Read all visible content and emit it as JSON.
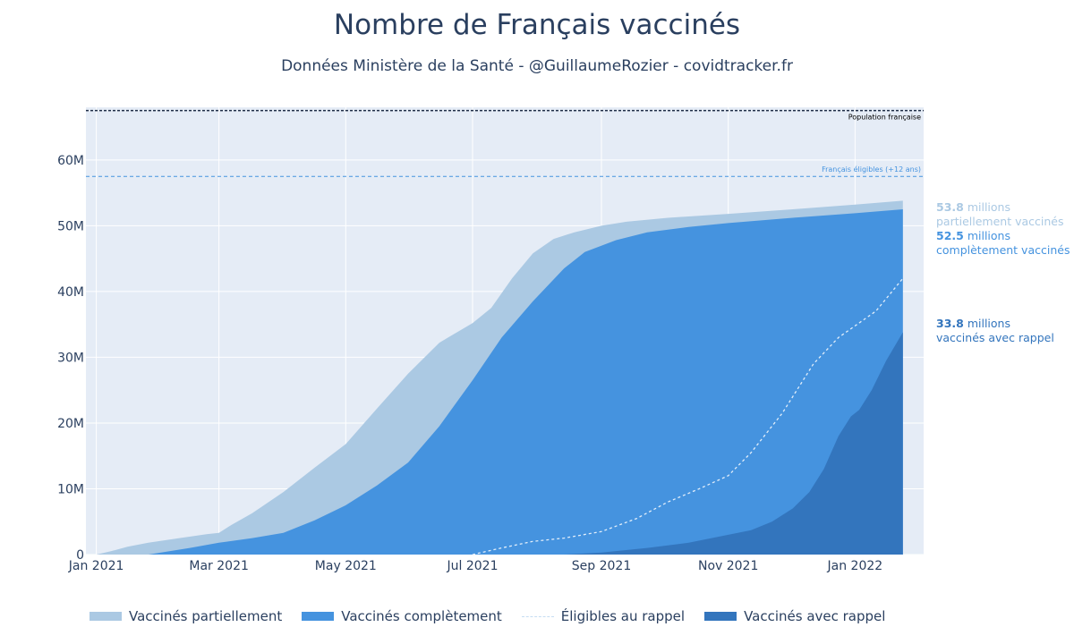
{
  "title": "Nombre de Français vaccinés",
  "subtitle": "Données Ministère de la Santé - @GuillaumeRozier - covidtracker.fr",
  "colors": {
    "partial": "#abc9e3",
    "complete": "#4593df",
    "booster": "#3375bd",
    "eligible_booster": "#e2eefa",
    "plot_bg": "#e5ecf6",
    "grid": "#ffffff",
    "population_line": "#1f2d46",
    "eligible_line": "#4593df"
  },
  "chart_data": {
    "type": "area",
    "title": "Nombre de Français vaccinés",
    "x_unit": "days since 2020-12-27",
    "xlim": [
      0,
      403
    ],
    "ylim": [
      0,
      68
    ],
    "y_unit": "millions",
    "y_ticks": [
      {
        "value": 0,
        "label": "0"
      },
      {
        "value": 10,
        "label": "10M"
      },
      {
        "value": 20,
        "label": "20M"
      },
      {
        "value": 30,
        "label": "30M"
      },
      {
        "value": 40,
        "label": "40M"
      },
      {
        "value": 50,
        "label": "50M"
      },
      {
        "value": 60,
        "label": "60M"
      }
    ],
    "x_ticks": [
      {
        "value": 5,
        "label": "Jan 2021"
      },
      {
        "value": 64,
        "label": "Mar 2021"
      },
      {
        "value": 125,
        "label": "May 2021"
      },
      {
        "value": 186,
        "label": "Jul 2021"
      },
      {
        "value": 248,
        "label": "Sep 2021"
      },
      {
        "value": 309,
        "label": "Nov 2021"
      },
      {
        "value": 370,
        "label": "Jan 2022"
      }
    ],
    "reference_lines": [
      {
        "name": "population",
        "value": 67.5,
        "label": "Population française",
        "style": "dotted"
      },
      {
        "name": "eligible",
        "value": 57.5,
        "label": "Français éligibles (+12 ans)",
        "style": "dashed"
      }
    ],
    "series": [
      {
        "name": "Vaccinés partiellement",
        "kind": "area",
        "color_key": "partial",
        "points": [
          [
            0,
            0
          ],
          [
            5,
            0
          ],
          [
            12,
            0.5
          ],
          [
            20,
            1.2
          ],
          [
            30,
            1.8
          ],
          [
            45,
            2.5
          ],
          [
            58,
            3.1
          ],
          [
            64,
            3.3
          ],
          [
            70,
            4.5
          ],
          [
            80,
            6.3
          ],
          [
            95,
            9.5
          ],
          [
            110,
            13.2
          ],
          [
            125,
            16.8
          ],
          [
            140,
            22.2
          ],
          [
            155,
            27.5
          ],
          [
            170,
            32.2
          ],
          [
            186,
            35.2
          ],
          [
            195,
            37.5
          ],
          [
            205,
            42
          ],
          [
            215,
            45.8
          ],
          [
            225,
            48
          ],
          [
            235,
            49
          ],
          [
            248,
            50
          ],
          [
            260,
            50.6
          ],
          [
            280,
            51.2
          ],
          [
            309,
            51.8
          ],
          [
            340,
            52.5
          ],
          [
            370,
            53.2
          ],
          [
            393,
            53.8
          ]
        ]
      },
      {
        "name": "Vaccinés complètement",
        "kind": "area",
        "color_key": "complete",
        "points": [
          [
            0,
            0
          ],
          [
            30,
            0
          ],
          [
            50,
            1
          ],
          [
            64,
            1.8
          ],
          [
            80,
            2.5
          ],
          [
            95,
            3.3
          ],
          [
            110,
            5.2
          ],
          [
            125,
            7.5
          ],
          [
            140,
            10.5
          ],
          [
            155,
            14
          ],
          [
            170,
            19.5
          ],
          [
            186,
            26.5
          ],
          [
            200,
            33
          ],
          [
            215,
            38.5
          ],
          [
            230,
            43.5
          ],
          [
            240,
            46
          ],
          [
            255,
            47.8
          ],
          [
            270,
            49
          ],
          [
            290,
            49.8
          ],
          [
            309,
            50.4
          ],
          [
            340,
            51.2
          ],
          [
            370,
            51.9
          ],
          [
            393,
            52.5
          ]
        ]
      },
      {
        "name": "Éligibles au rappel",
        "kind": "line",
        "color_key": "eligible_booster",
        "points": [
          [
            186,
            0
          ],
          [
            200,
            1
          ],
          [
            215,
            2
          ],
          [
            230,
            2.5
          ],
          [
            248,
            3.5
          ],
          [
            265,
            5.5
          ],
          [
            280,
            8
          ],
          [
            295,
            10
          ],
          [
            309,
            12
          ],
          [
            320,
            15.5
          ],
          [
            335,
            21.5
          ],
          [
            350,
            29
          ],
          [
            362,
            33
          ],
          [
            380,
            37
          ],
          [
            393,
            42
          ]
        ]
      },
      {
        "name": "Vaccinés avec rappel",
        "kind": "area",
        "color_key": "booster",
        "points": [
          [
            0,
            0
          ],
          [
            230,
            0
          ],
          [
            248,
            0.3
          ],
          [
            270,
            1
          ],
          [
            290,
            1.8
          ],
          [
            309,
            3
          ],
          [
            320,
            3.7
          ],
          [
            330,
            5
          ],
          [
            340,
            7
          ],
          [
            348,
            9.5
          ],
          [
            355,
            13
          ],
          [
            362,
            18
          ],
          [
            368,
            21
          ],
          [
            372,
            22
          ],
          [
            378,
            25
          ],
          [
            385,
            29.5
          ],
          [
            393,
            33.8
          ]
        ]
      }
    ],
    "annotations": [
      {
        "value": "53.8",
        "unit": "millions",
        "text": "partiellement vaccinés",
        "color_key": "partial"
      },
      {
        "value": "52.5",
        "unit": "millions",
        "text": "complètement vaccinés",
        "color_key": "complete"
      },
      {
        "value": "33.8",
        "unit": "millions",
        "text": "vaccinés avec rappel",
        "color_key": "booster"
      }
    ]
  }
}
